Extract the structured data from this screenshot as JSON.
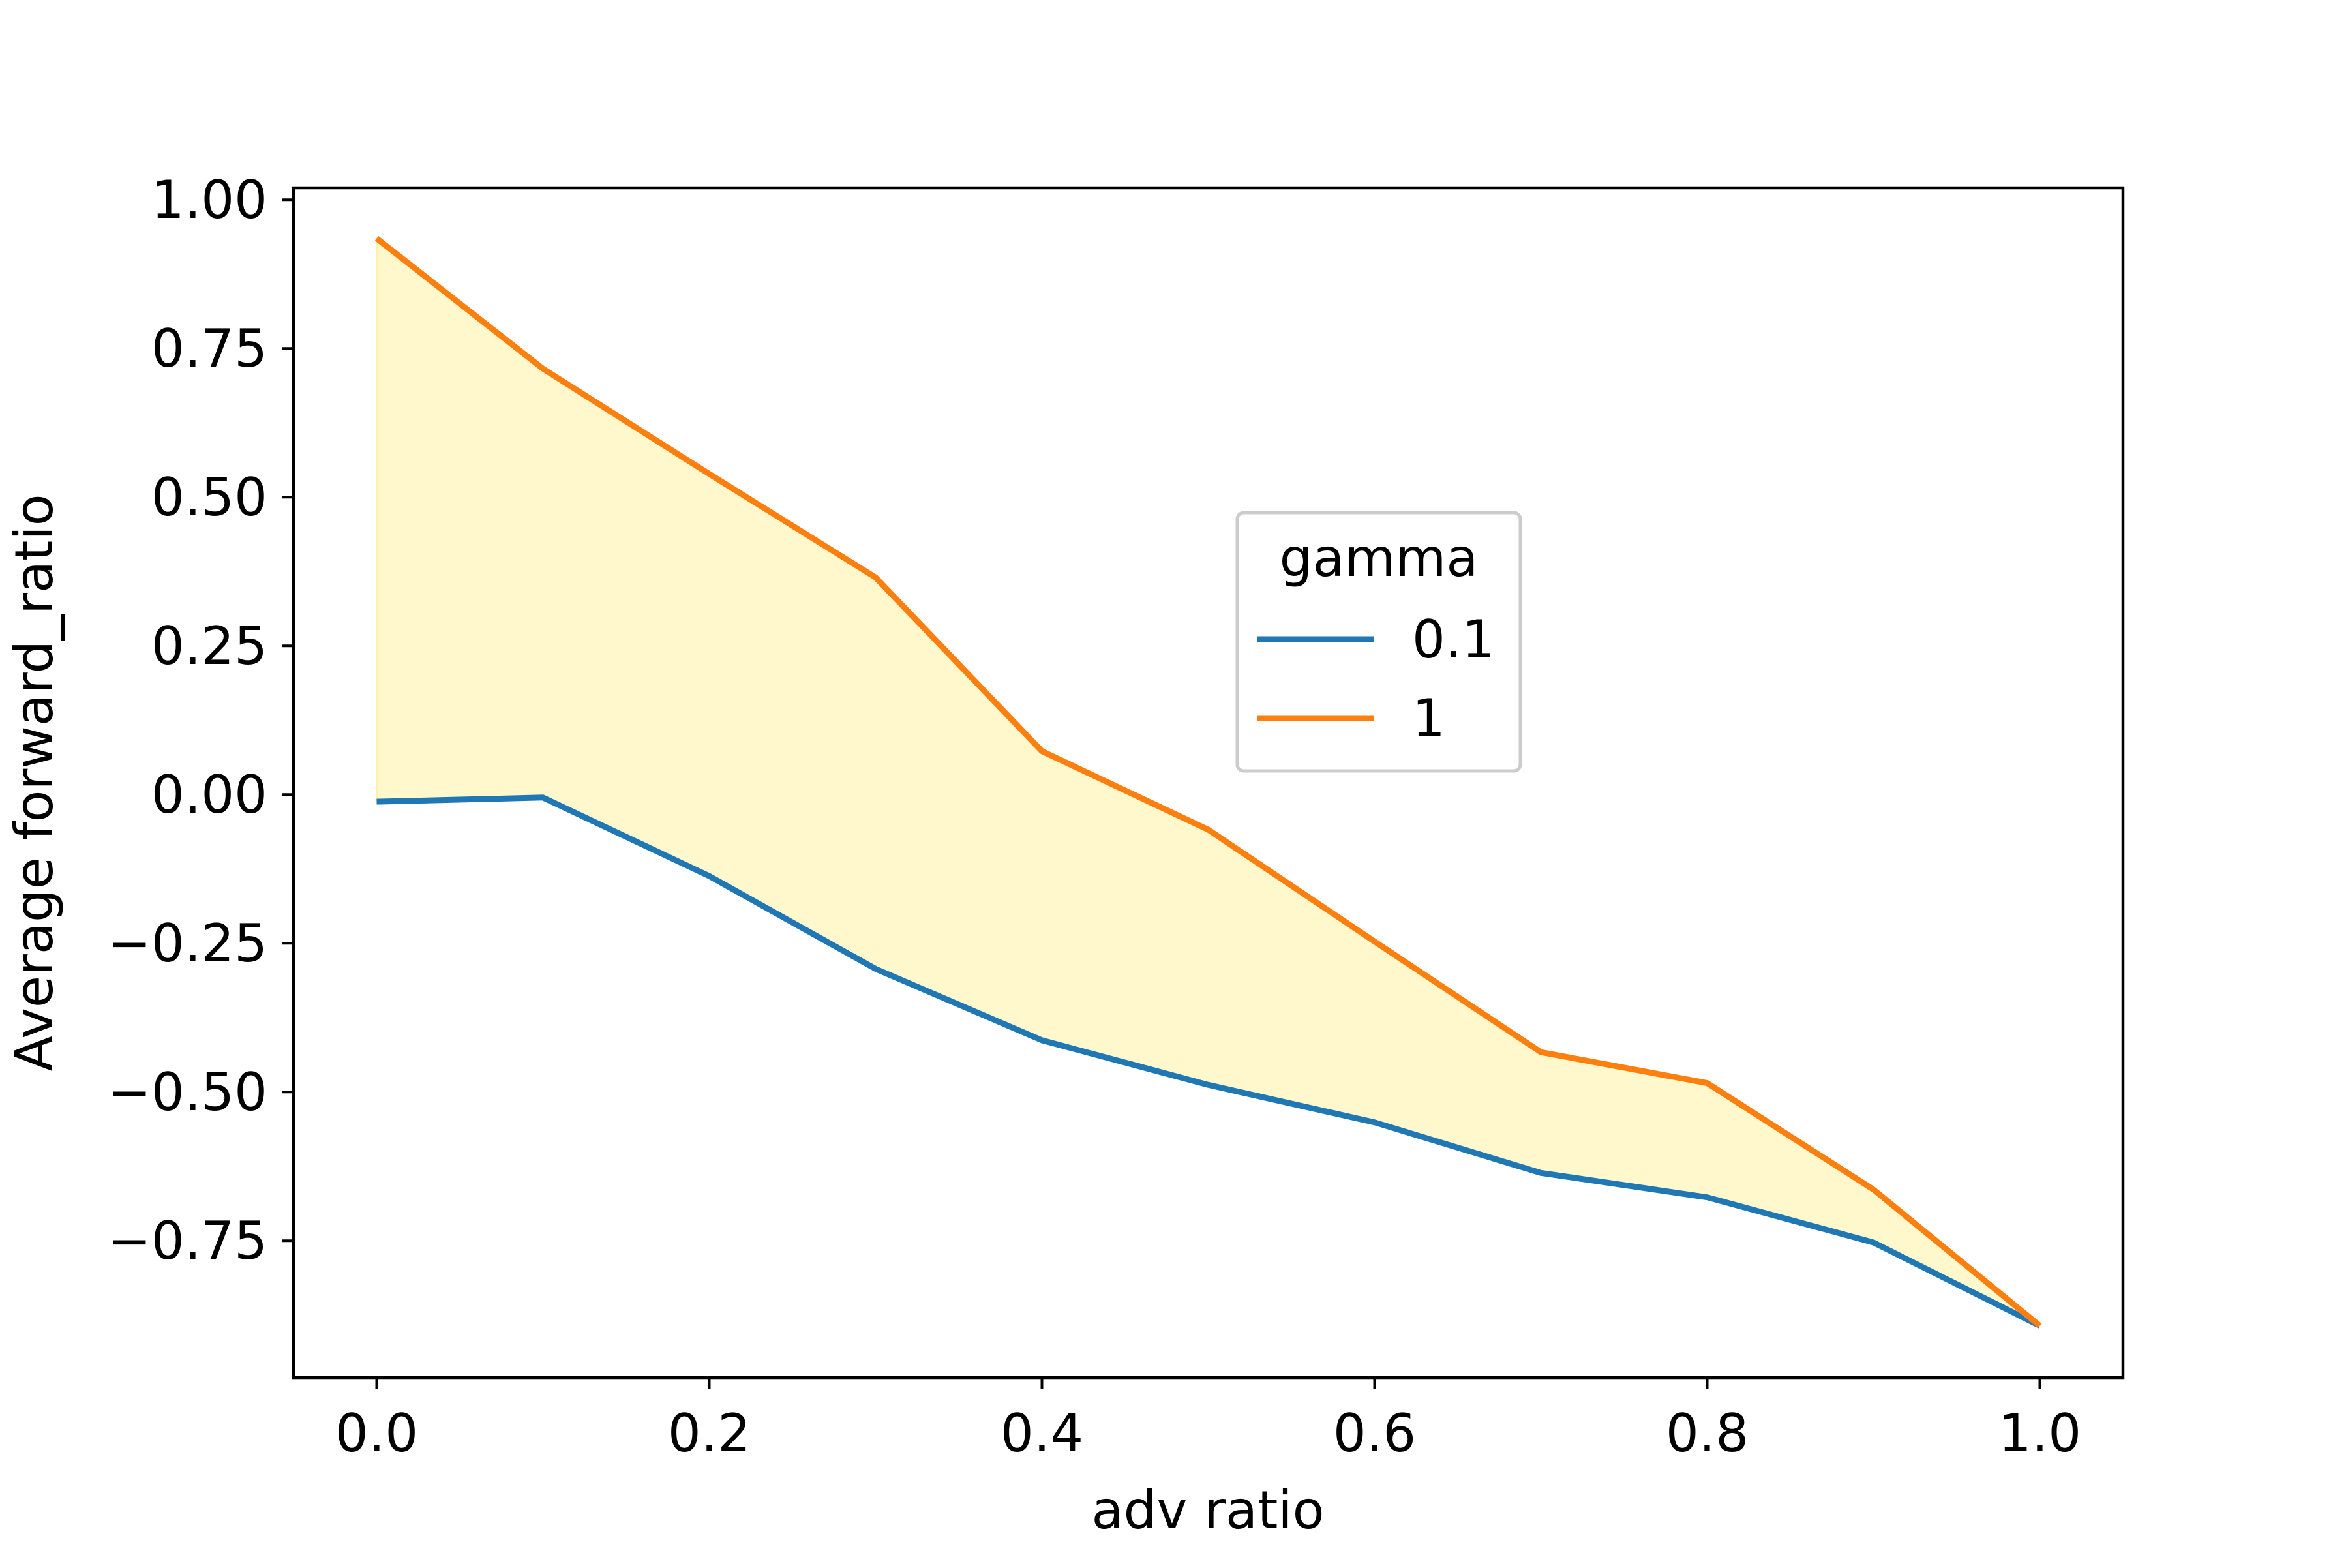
{
  "chart_data": {
    "type": "line",
    "title": "",
    "xlabel": "adv ratio",
    "ylabel": "Average forward_ratio",
    "xlim": [
      -0.05,
      1.05
    ],
    "ylim": [
      -0.98,
      1.02
    ],
    "x": [
      0.0,
      0.1,
      0.2,
      0.3,
      0.4,
      0.5,
      0.6,
      0.7,
      0.8,
      0.9,
      1.0
    ],
    "xticks": [
      0.0,
      0.2,
      0.4,
      0.6,
      0.8,
      1.0
    ],
    "xtick_labels": [
      "0.0",
      "0.2",
      "0.4",
      "0.6",
      "0.8",
      "1.0"
    ],
    "yticks": [
      1.0,
      0.75,
      0.5,
      0.25,
      0.0,
      -0.25,
      -0.5,
      -0.75
    ],
    "ytick_labels": [
      "1.00",
      "0.75",
      "0.50",
      "0.25",
      "0.00",
      "−0.25",
      "−0.50",
      "−0.75"
    ],
    "series": [
      {
        "name": "0.1",
        "color": "#1f77b4",
        "values": [
          -0.012,
          -0.005,
          -0.137,
          -0.293,
          -0.413,
          -0.488,
          -0.551,
          -0.636,
          -0.677,
          -0.753,
          -0.893
        ]
      },
      {
        "name": "1",
        "color": "#ff7f0e",
        "values": [
          0.935,
          0.716,
          0.539,
          0.365,
          0.073,
          -0.059,
          -0.247,
          -0.433,
          -0.485,
          -0.664,
          -0.893
        ]
      }
    ],
    "fill_between": {
      "lower_series": "0.1",
      "upper_series": "1",
      "color": "#fff8cc",
      "edge_color": "#fff3a8"
    },
    "legend": {
      "title": "gamma",
      "placement": "center-right",
      "entries": [
        "0.1",
        "1"
      ]
    },
    "grid": false
  }
}
